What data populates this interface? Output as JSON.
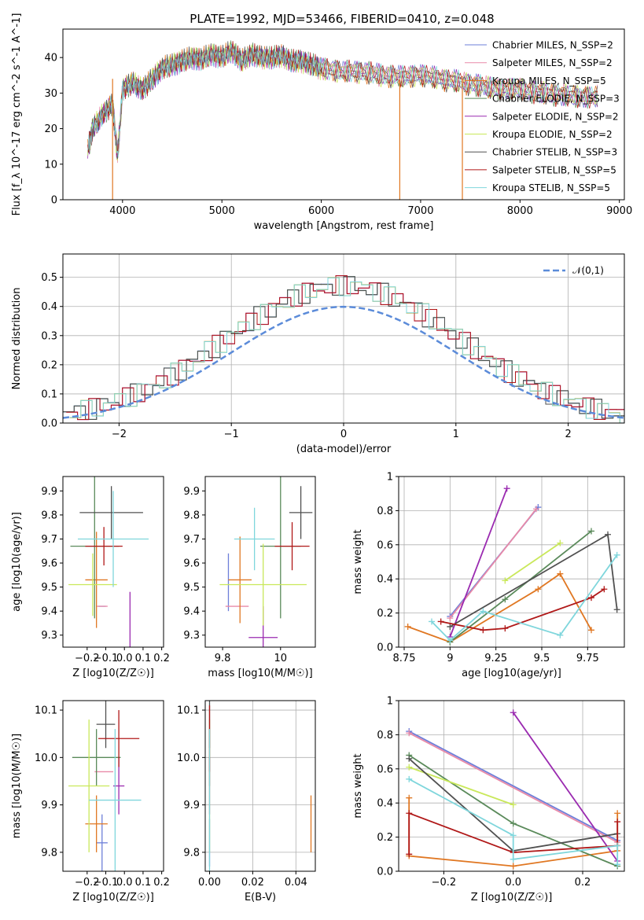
{
  "title": "PLATE=1992, MJD=53466, FIBERID=0410, z=0.048",
  "colors": [
    "#6d7fd9",
    "#e98aa8",
    "#e07722",
    "#5a8a5a",
    "#9a2ab0",
    "#c9e85a",
    "#505050",
    "#b01818",
    "#7fd6dc"
  ],
  "series_names": [
    "Chabrier MILES, N_SSP=2",
    "Salpeter MILES, N_SSP=2",
    "Kroupa MILES, N_SSP=5",
    "Chabrier ELODIE, N_SSP=3",
    "Salpeter ELODIE, N_SSP=2",
    "Kroupa ELODIE, N_SSP=2",
    "Chabrier STELIB, N_SSP=3",
    "Salpeter STELIB, N_SSP=5",
    "Kroupa STELIB, N_SSP=5"
  ],
  "chart_data": [
    {
      "type": "line",
      "xlabel": "wavelength [Angstrom, rest frame]",
      "ylabel": "Flux [f_λ 10^-17 erg cm^-2 s^-1 A^-1]",
      "xlim": [
        3400,
        9050
      ],
      "ylim": [
        0,
        48
      ],
      "xticks": [
        4000,
        5000,
        6000,
        7000,
        8000,
        9000
      ],
      "yticks": [
        0,
        10,
        20,
        30,
        40
      ],
      "legend": "top-right",
      "spectrum": {
        "x": [
          3650,
          3700,
          3800,
          3900,
          3950,
          4000,
          4100,
          4200,
          4300,
          4400,
          4500,
          4600,
          4700,
          4800,
          4900,
          5000,
          5100,
          5200,
          5300,
          5400,
          5500,
          5600,
          5700,
          5800,
          5900,
          6000,
          6200,
          6400,
          6600,
          6800,
          7000,
          7200,
          7400,
          7600,
          7800,
          8000,
          8200,
          8400,
          8600,
          8800
        ],
        "y": [
          14,
          20,
          24,
          27,
          12,
          31,
          33,
          31,
          34,
          37,
          38,
          39,
          40,
          39.5,
          41,
          40,
          42,
          39,
          41,
          40,
          40,
          40.5,
          39,
          39,
          38,
          37,
          36,
          36,
          35,
          34.5,
          35,
          34,
          33,
          32,
          31,
          31,
          30,
          29.5,
          29,
          29
        ]
      },
      "dropouts": [
        {
          "series": 2,
          "x": 3900
        },
        {
          "series": 2,
          "x": 6790
        },
        {
          "series": 2,
          "x": 7420
        }
      ]
    },
    {
      "type": "histogram",
      "xlabel": "(data-model)/error",
      "ylabel": "Normed distribution",
      "xlim": [
        -2.5,
        2.5
      ],
      "ylim": [
        0,
        0.58
      ],
      "xticks": [
        -2,
        -1,
        0,
        1,
        2
      ],
      "yticks": [
        0,
        0.1,
        0.2,
        0.3,
        0.4,
        0.5
      ],
      "reference": {
        "name": "𝒩(0,1)",
        "mean": 0,
        "sigma": 1
      },
      "legend": "top-right"
    },
    {
      "type": "errorbar",
      "xlabel": "Z [log10(Z/Z☉)]",
      "ylabel": "age  [log10(age/yr)]",
      "xlim": [
        -0.33,
        0.21
      ],
      "ylim": [
        9.25,
        9.96
      ],
      "xticks": [
        -0.2,
        -0.1,
        0.0,
        0.1,
        0.2
      ],
      "yticks": [
        9.3,
        9.4,
        9.5,
        9.6,
        9.7,
        9.8,
        9.9
      ],
      "points": [
        {
          "x": -0.12,
          "xerr": 0.02,
          "y": 9.42,
          "yerr": 0.0
        },
        {
          "x": -0.12,
          "xerr": 0.03,
          "y": 9.42,
          "yerr": 0.0
        },
        {
          "x": -0.15,
          "xerr": 0.06,
          "y": 9.53,
          "yerr": 0.2
        },
        {
          "x": -0.16,
          "xerr": 0.13,
          "y": 9.67,
          "yerr": 0.3
        },
        {
          "x": 0.03,
          "xerr": 0.0,
          "y": 9.34,
          "yerr": 0.14
        },
        {
          "x": -0.17,
          "xerr": 0.13,
          "y": 9.51,
          "yerr": 0.13
        },
        {
          "x": -0.07,
          "xerr": 0.17,
          "y": 9.81,
          "yerr": 0.11
        },
        {
          "x": -0.11,
          "xerr": 0.1,
          "y": 9.67,
          "yerr": 0.08
        },
        {
          "x": -0.06,
          "xerr": 0.19,
          "y": 9.7,
          "yerr": 0.2
        }
      ]
    },
    {
      "type": "errorbar",
      "xlabel": "mass [log10(M/M☉)]",
      "ylabel": "",
      "xlim": [
        9.74,
        10.12
      ],
      "ylim": [
        9.25,
        9.96
      ],
      "xticks": [
        9.8,
        10.0
      ],
      "yticks": [
        9.3,
        9.4,
        9.5,
        9.6,
        9.7,
        9.8,
        9.9
      ],
      "points": [
        {
          "x": 9.82,
          "xerr": 0.0,
          "y": 9.52,
          "yerr": 0.12
        },
        {
          "x": 9.85,
          "xerr": 0.04,
          "y": 9.42,
          "yerr": 0.0
        },
        {
          "x": 9.86,
          "xerr": 0.04,
          "y": 9.53,
          "yerr": 0.18
        },
        {
          "x": 10.0,
          "xerr": 0.07,
          "y": 9.67,
          "yerr": 0.3
        },
        {
          "x": 9.94,
          "xerr": 0.05,
          "y": 9.29,
          "yerr": 0.13
        },
        {
          "x": 9.94,
          "xerr": 0.15,
          "y": 9.51,
          "yerr": 0.17
        },
        {
          "x": 10.07,
          "xerr": 0.04,
          "y": 9.81,
          "yerr": 0.11
        },
        {
          "x": 10.04,
          "xerr": 0.06,
          "y": 9.67,
          "yerr": 0.1
        },
        {
          "x": 9.91,
          "xerr": 0.07,
          "y": 9.7,
          "yerr": 0.13
        }
      ]
    },
    {
      "type": "line",
      "xlabel": "age  [log10(age/yr)]",
      "ylabel": "mass weight",
      "xlim": [
        8.72,
        9.95
      ],
      "ylim": [
        0,
        1.0
      ],
      "xticks": [
        8.75,
        9.0,
        9.25,
        9.5,
        9.75
      ],
      "yticks": [
        0,
        0.2,
        0.4,
        0.6,
        0.8,
        1.0
      ],
      "series": [
        {
          "x": [
            9.0,
            9.48
          ],
          "y": [
            0.18,
            0.82
          ]
        },
        {
          "x": [
            9.0,
            9.47
          ],
          "y": [
            0.17,
            0.81
          ]
        },
        {
          "x": [
            8.77,
            9.0,
            9.48,
            9.6,
            9.77
          ],
          "y": [
            0.12,
            0.03,
            0.34,
            0.43,
            0.1
          ]
        },
        {
          "x": [
            9.0,
            9.3,
            9.77
          ],
          "y": [
            0.03,
            0.28,
            0.68
          ]
        },
        {
          "x": [
            9.0,
            9.31
          ],
          "y": [
            0.06,
            0.93
          ]
        },
        {
          "x": [
            9.3,
            9.6
          ],
          "y": [
            0.39,
            0.61
          ]
        },
        {
          "x": [
            9.0,
            9.86,
            9.91
          ],
          "y": [
            0.12,
            0.66,
            0.22
          ]
        },
        {
          "x": [
            8.95,
            9.18,
            9.3,
            9.77,
            9.84
          ],
          "y": [
            0.15,
            0.1,
            0.11,
            0.29,
            0.34
          ]
        },
        {
          "x": [
            8.9,
            9.0,
            9.18,
            9.6,
            9.91
          ],
          "y": [
            0.15,
            0.04,
            0.21,
            0.07,
            0.54
          ]
        }
      ]
    },
    {
      "type": "errorbar",
      "xlabel": "Z [log10(Z/Z☉)]",
      "ylabel": "mass [log10(M/M☉)]",
      "xlim": [
        -0.33,
        0.21
      ],
      "ylim": [
        9.76,
        10.12
      ],
      "xticks": [
        -0.2,
        -0.1,
        0.0,
        0.1,
        0.2
      ],
      "yticks": [
        9.8,
        9.9,
        10.0,
        10.1
      ],
      "points": [
        {
          "x": -0.12,
          "xerr": 0.03,
          "y": 9.82,
          "yerr": 0.06
        },
        {
          "x": -0.11,
          "xerr": 0.05,
          "y": 9.97,
          "yerr": 0.0
        },
        {
          "x": -0.15,
          "xerr": 0.06,
          "y": 9.86,
          "yerr": 0.06
        },
        {
          "x": -0.15,
          "xerr": 0.13,
          "y": 10.0,
          "yerr": 0.06
        },
        {
          "x": -0.03,
          "xerr": 0.03,
          "y": 9.94,
          "yerr": 0.06
        },
        {
          "x": -0.19,
          "xerr": 0.11,
          "y": 9.94,
          "yerr": 0.14
        },
        {
          "x": -0.1,
          "xerr": 0.05,
          "y": 10.07,
          "yerr": 0.05
        },
        {
          "x": -0.03,
          "xerr": 0.11,
          "y": 10.04,
          "yerr": 0.06
        },
        {
          "x": -0.05,
          "xerr": 0.14,
          "y": 9.91,
          "yerr": 0.15
        }
      ]
    },
    {
      "type": "errorbar",
      "xlabel": "E(B-V)",
      "ylabel": "",
      "xlim": [
        -0.002,
        0.049
      ],
      "ylim": [
        9.76,
        10.12
      ],
      "xticks": [
        0.0,
        0.02,
        0.04
      ],
      "yticks": [
        9.8,
        9.9,
        10.0,
        10.1
      ],
      "points": [
        {
          "x": 0.0,
          "xerr": 0,
          "y": 9.82,
          "yerr": 0.05
        },
        {
          "x": 0.0,
          "xerr": 0,
          "y": 9.97,
          "yerr": 0.03
        },
        {
          "x": 0.047,
          "xerr": 0,
          "y": 9.86,
          "yerr": 0.06
        },
        {
          "x": 0.0,
          "xerr": 0,
          "y": 10.0,
          "yerr": 0.06
        },
        {
          "x": 0.0,
          "xerr": 0,
          "y": 9.94,
          "yerr": 0.06
        },
        {
          "x": 0.0,
          "xerr": 0,
          "y": 9.94,
          "yerr": 0.14
        },
        {
          "x": 0.0,
          "xerr": 0,
          "y": 10.07,
          "yerr": 0.05
        },
        {
          "x": 0.0,
          "xerr": 0,
          "y": 10.04,
          "yerr": 0.07
        },
        {
          "x": 0.0,
          "xerr": 0,
          "y": 9.91,
          "yerr": 0.15
        }
      ]
    },
    {
      "type": "line",
      "xlabel": "Z [log10(Z/Z☉)]",
      "ylabel": "mass weight",
      "xlim": [
        -0.33,
        0.32
      ],
      "ylim": [
        0,
        1.0
      ],
      "xticks": [
        -0.2,
        0.0,
        0.2
      ],
      "yticks": [
        0,
        0.2,
        0.4,
        0.6,
        0.8,
        1.0
      ],
      "series": [
        {
          "x": [
            -0.3,
            0.3
          ],
          "y": [
            0.82,
            0.18
          ]
        },
        {
          "x": [
            -0.3,
            0.3
          ],
          "y": [
            0.81,
            0.17
          ]
        },
        {
          "x": [
            -0.3,
            -0.3,
            0.0,
            0.3,
            0.3
          ],
          "y": [
            0.43,
            0.09,
            0.03,
            0.12,
            0.34
          ]
        },
        {
          "x": [
            -0.3,
            0.0,
            0.3
          ],
          "y": [
            0.68,
            0.28,
            0.03
          ]
        },
        {
          "x": [
            0.0,
            0.3
          ],
          "y": [
            0.93,
            0.06
          ]
        },
        {
          "x": [
            -0.3,
            0.0
          ],
          "y": [
            0.61,
            0.39
          ]
        },
        {
          "x": [
            -0.3,
            0.0,
            0.3
          ],
          "y": [
            0.66,
            0.12,
            0.22
          ]
        },
        {
          "x": [
            -0.3,
            -0.3,
            0.0,
            0.3,
            0.3
          ],
          "y": [
            0.1,
            0.34,
            0.11,
            0.15,
            0.29
          ]
        },
        {
          "x": [
            -0.3,
            0.0,
            0.0,
            0.3,
            0.3
          ],
          "y": [
            0.54,
            0.21,
            0.07,
            0.15,
            0.04
          ]
        }
      ]
    }
  ]
}
